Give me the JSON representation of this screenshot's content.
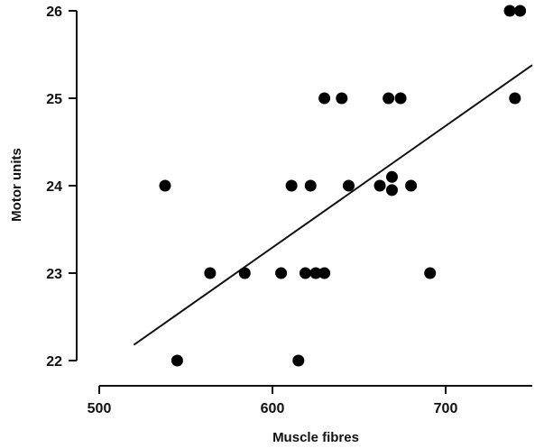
{
  "chart_data": {
    "type": "scatter",
    "title": "",
    "xlabel": "Muscle fibres",
    "ylabel": "Motor units",
    "xlim": [
      500,
      750
    ],
    "ylim": [
      22,
      26
    ],
    "xticks": [
      500,
      600,
      700
    ],
    "yticks": [
      22,
      23,
      24,
      25,
      26
    ],
    "grid": false,
    "color": "#000000",
    "points": [
      {
        "x": 538,
        "y": 24
      },
      {
        "x": 545,
        "y": 22
      },
      {
        "x": 564,
        "y": 23
      },
      {
        "x": 584,
        "y": 23
      },
      {
        "x": 605,
        "y": 23
      },
      {
        "x": 611,
        "y": 24
      },
      {
        "x": 615,
        "y": 22
      },
      {
        "x": 619,
        "y": 23
      },
      {
        "x": 622,
        "y": 24
      },
      {
        "x": 625,
        "y": 23
      },
      {
        "x": 630,
        "y": 23
      },
      {
        "x": 630,
        "y": 25
      },
      {
        "x": 640,
        "y": 25
      },
      {
        "x": 644,
        "y": 24
      },
      {
        "x": 662,
        "y": 24
      },
      {
        "x": 667,
        "y": 25
      },
      {
        "x": 669,
        "y": 24.1
      },
      {
        "x": 669,
        "y": 23.95
      },
      {
        "x": 674,
        "y": 25
      },
      {
        "x": 680,
        "y": 24
      },
      {
        "x": 691,
        "y": 23
      },
      {
        "x": 737,
        "y": 26
      },
      {
        "x": 740,
        "y": 25
      },
      {
        "x": 743,
        "y": 26
      }
    ],
    "regression_line": {
      "x": [
        520,
        750
      ],
      "y": [
        22.18,
        25.38
      ]
    }
  }
}
